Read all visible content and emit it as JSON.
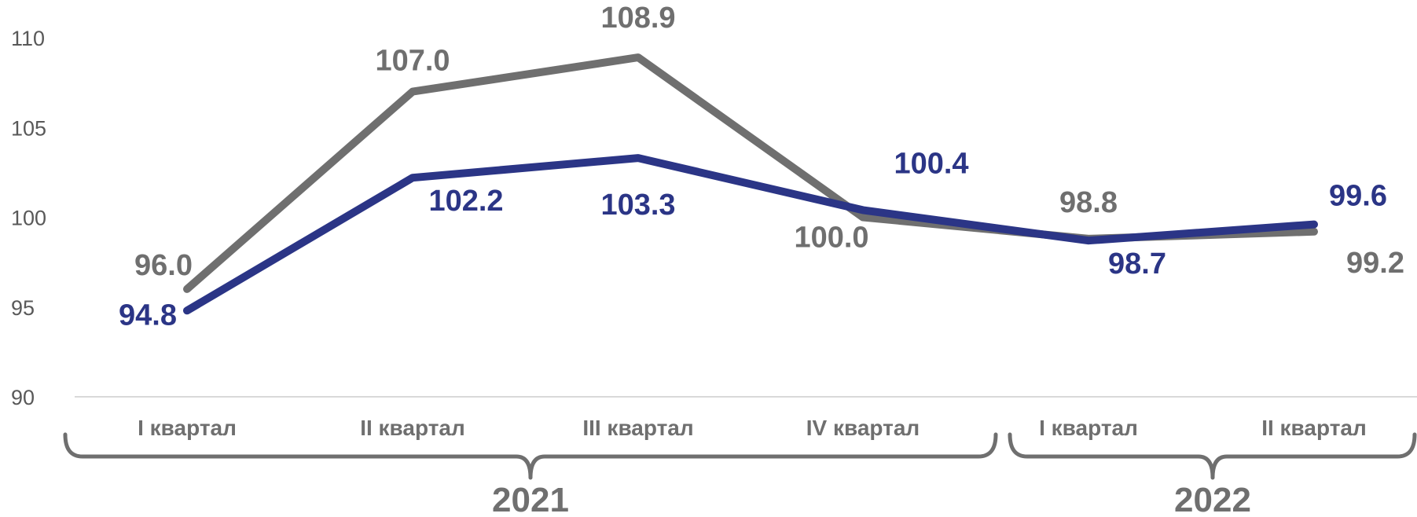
{
  "chart_data": {
    "type": "line",
    "title": "",
    "xlabel": "",
    "ylabel": "",
    "categories": [
      "I квартал",
      "II квартал",
      "III квартал",
      "IV квартал",
      "I квартал",
      "II квартал"
    ],
    "groups": [
      {
        "label": "2021",
        "from": 0,
        "to": 3
      },
      {
        "label": "2022",
        "from": 4,
        "to": 5
      }
    ],
    "yticks": [
      "90",
      "95",
      "100",
      "105",
      "110"
    ],
    "ylim": [
      90,
      110
    ],
    "grid": false,
    "series": [
      {
        "color": "#6f6f6f",
        "values": [
          96.0,
          107.0,
          108.9,
          100.0,
          98.8,
          99.2
        ],
        "labels": [
          "96.0",
          "107.0",
          "108.9",
          "100.0",
          "98.8",
          "99.2"
        ]
      },
      {
        "color": "#2b3586",
        "values": [
          94.8,
          102.2,
          103.3,
          100.4,
          98.7,
          99.6
        ],
        "labels": [
          "94.8",
          "102.2",
          "103.3",
          "100.4",
          "98.7",
          "99.6"
        ]
      }
    ]
  }
}
